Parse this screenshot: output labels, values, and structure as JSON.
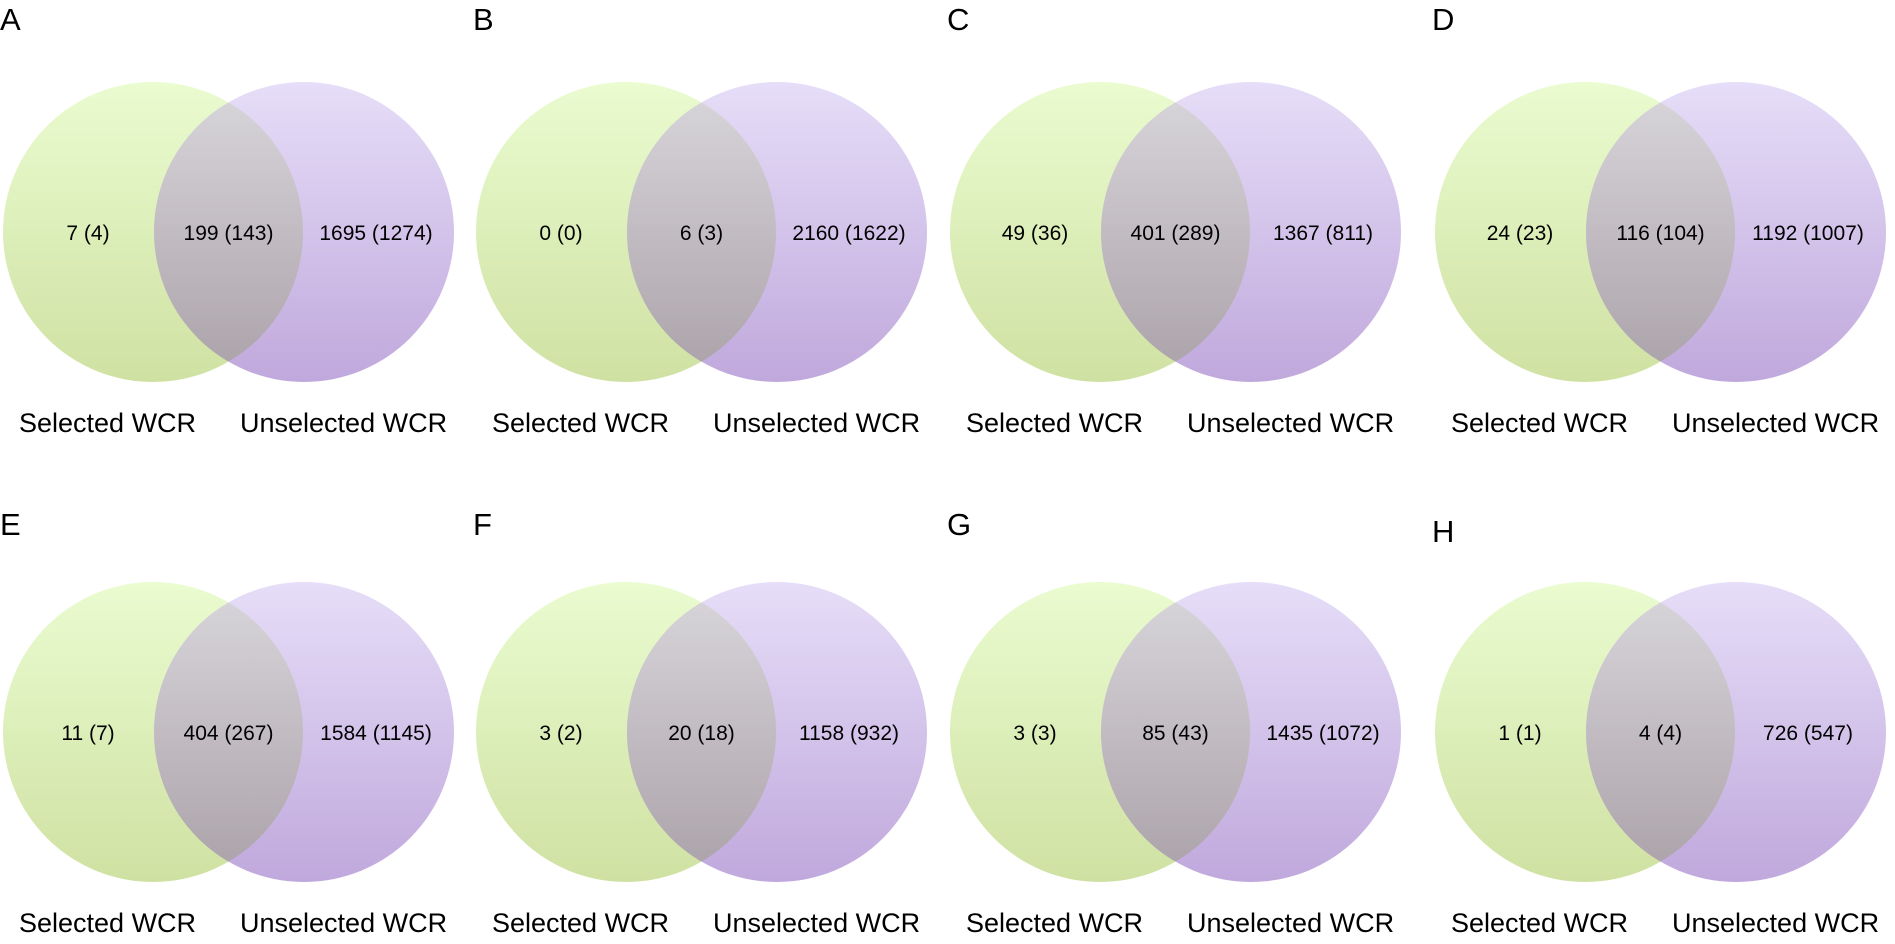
{
  "colors": {
    "set_a_top": "#eafcd0",
    "set_a_bottom": "#cfe1a2",
    "set_b_top": "#e6def8",
    "set_b_bottom": "#c0a8dc",
    "overlap_top": "#d9d7dc",
    "overlap_bottom": "#aaa1a8",
    "text": "#000000"
  },
  "set_labels": {
    "left": "Selected WCR",
    "right": "Unselected WCR"
  },
  "panels": [
    {
      "letter": "A",
      "left_only": "7 (4)",
      "overlap": "199 (143)",
      "right_only": "1695 (1274)"
    },
    {
      "letter": "B",
      "left_only": "0 (0)",
      "overlap": "6 (3)",
      "right_only": "2160 (1622)"
    },
    {
      "letter": "C",
      "left_only": "49 (36)",
      "overlap": "401 (289)",
      "right_only": "1367 (811)"
    },
    {
      "letter": "D",
      "left_only": "24 (23)",
      "overlap": "116 (104)",
      "right_only": "1192 (1007)"
    },
    {
      "letter": "E",
      "left_only": "11 (7)",
      "overlap": "404 (267)",
      "right_only": "1584 (1145)"
    },
    {
      "letter": "F",
      "left_only": "3 (2)",
      "overlap": "20 (18)",
      "right_only": "1158 (932)"
    },
    {
      "letter": "G",
      "left_only": "3 (3)",
      "overlap": "85 (43)",
      "right_only": "1435 (1072)"
    },
    {
      "letter": "H",
      "left_only": "1 (1)",
      "overlap": "4 (4)",
      "right_only": "726 (547)"
    }
  ]
}
